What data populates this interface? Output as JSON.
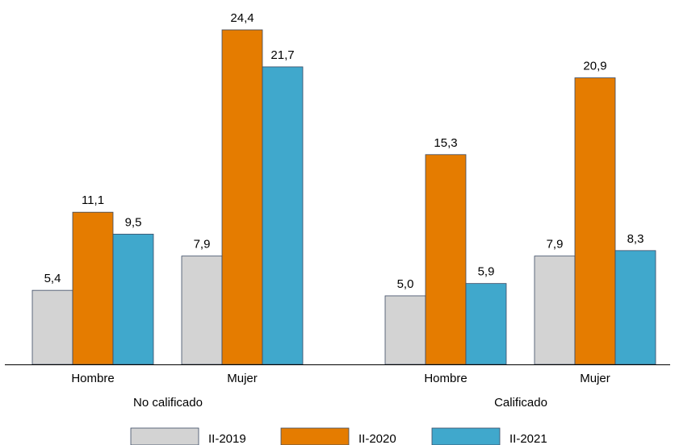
{
  "chart_data": {
    "type": "bar",
    "title": "",
    "xlabel": "",
    "ylabel": "",
    "ylim": [
      0,
      26
    ],
    "grid": false,
    "legend_position": "bottom",
    "groups": [
      {
        "label": "No calificado",
        "categories": [
          "Hombre",
          "Mujer"
        ]
      },
      {
        "label": "Calificado",
        "categories": [
          "Hombre",
          "Mujer"
        ]
      }
    ],
    "series": [
      {
        "name": "II-2019",
        "color": "#d3d3d3",
        "values": [
          5.4,
          7.9,
          5.0,
          7.9
        ],
        "labels": [
          "5,4",
          "7,9",
          "5,0",
          "7,9"
        ]
      },
      {
        "name": "II-2020",
        "color": "#e57c00",
        "values": [
          11.1,
          24.4,
          15.3,
          20.9
        ],
        "labels": [
          "11,1",
          "24,4",
          "15,3",
          "20,9"
        ]
      },
      {
        "name": "II-2021",
        "color": "#40a8cc",
        "values": [
          9.5,
          21.7,
          5.9,
          8.3
        ],
        "labels": [
          "9,5",
          "21,7",
          "5,9",
          "8,3"
        ]
      }
    ]
  }
}
